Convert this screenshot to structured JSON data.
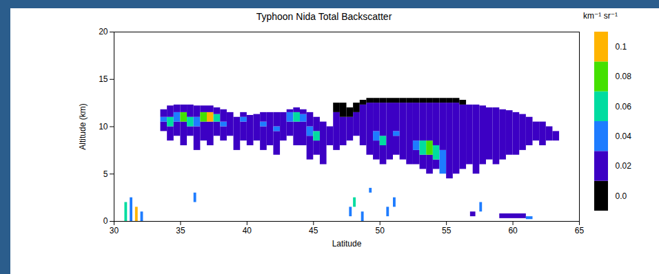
{
  "chart_data": {
    "type": "heatmap",
    "title": "Typhoon Nida Total Backscatter",
    "x_label": "Latitude",
    "y_label": "Altitude (km)",
    "xlim": [
      30,
      65
    ],
    "xticks": [
      30,
      35,
      40,
      45,
      50,
      55,
      60,
      65
    ],
    "ylim": [
      0,
      20
    ],
    "yticks": [
      0,
      5,
      10,
      15,
      20
    ],
    "cells": [
      [
        33.5,
        34,
        9.5,
        10.5,
        0.02
      ],
      [
        33.5,
        34,
        10.5,
        11,
        0.04
      ],
      [
        33.5,
        34,
        11,
        11.8,
        0.02
      ],
      [
        34,
        34.5,
        8.5,
        10,
        0.02
      ],
      [
        34,
        34.5,
        10,
        11,
        0.06
      ],
      [
        34,
        34.5,
        11,
        12.2,
        0.02
      ],
      [
        34.5,
        35,
        9,
        10.5,
        0.02
      ],
      [
        34.5,
        35,
        10.5,
        11.5,
        0.04
      ],
      [
        34.5,
        35,
        11.5,
        12.3,
        0.02
      ],
      [
        35,
        35.5,
        8,
        10.5,
        0.02
      ],
      [
        35,
        35.5,
        10.5,
        11.5,
        0.08
      ],
      [
        35,
        35.5,
        11.5,
        12.3,
        0.02
      ],
      [
        35.5,
        36,
        9,
        10,
        0.02
      ],
      [
        35.5,
        36,
        10,
        11,
        0.06
      ],
      [
        35.5,
        36,
        11,
        12.3,
        0.02
      ],
      [
        36,
        36.5,
        7.5,
        10,
        0.02
      ],
      [
        36,
        36.5,
        10,
        11,
        0.04
      ],
      [
        36,
        36.5,
        11,
        12.2,
        0.02
      ],
      [
        36.5,
        37,
        8.5,
        10.5,
        0.02
      ],
      [
        36.5,
        37,
        10.5,
        11.5,
        0.08
      ],
      [
        36.5,
        37,
        11.5,
        12.2,
        0.02
      ],
      [
        37,
        37.5,
        8,
        10.5,
        0.02
      ],
      [
        37,
        37.5,
        10.5,
        11.5,
        0.1
      ],
      [
        37,
        37.5,
        11.5,
        12.2,
        0.02
      ],
      [
        37.5,
        38,
        9,
        10.5,
        0.02
      ],
      [
        37.5,
        38,
        10.5,
        11.3,
        0.06
      ],
      [
        37.5,
        38,
        11.3,
        12,
        0.02
      ],
      [
        38,
        38.5,
        8.5,
        10,
        0.02
      ],
      [
        38,
        38.5,
        10,
        10.5,
        0.04
      ],
      [
        38,
        38.5,
        10.5,
        11.8,
        0.02
      ],
      [
        38.5,
        39,
        9,
        11.5,
        0.02
      ],
      [
        39,
        39.5,
        7.5,
        11,
        0.02
      ],
      [
        39.5,
        40,
        8.5,
        10.5,
        0.02
      ],
      [
        39.5,
        40,
        10.5,
        11,
        0.04
      ],
      [
        39.5,
        40,
        11,
        11.5,
        0.02
      ],
      [
        40,
        40.5,
        8,
        11.2,
        0.02
      ],
      [
        40.5,
        41,
        8.5,
        11.3,
        0.02
      ],
      [
        41,
        41.5,
        7.5,
        10,
        0.02
      ],
      [
        41,
        41.5,
        10,
        10.5,
        0.04
      ],
      [
        41,
        41.5,
        10.5,
        11.5,
        0.02
      ],
      [
        41.5,
        42,
        8,
        11.5,
        0.02
      ],
      [
        42,
        42.5,
        7,
        9.5,
        0.02
      ],
      [
        42,
        42.5,
        9.5,
        10,
        0.04
      ],
      [
        42,
        42.5,
        10,
        11.5,
        0.02
      ],
      [
        42.5,
        43,
        8.5,
        11.5,
        0.02
      ],
      [
        43,
        43.5,
        9,
        10.5,
        0.02
      ],
      [
        43,
        43.5,
        10.5,
        11.5,
        0.04
      ],
      [
        43,
        43.5,
        11.5,
        11.8,
        0.02
      ],
      [
        43.5,
        44,
        8,
        10.5,
        0.02
      ],
      [
        43.5,
        44,
        10.5,
        11.5,
        0.06
      ],
      [
        43.5,
        44,
        11.5,
        12,
        0.02
      ],
      [
        44,
        44.5,
        8,
        10.5,
        0.02
      ],
      [
        44,
        44.5,
        10.5,
        11.3,
        0.04
      ],
      [
        44,
        44.5,
        11.3,
        11.8,
        0.02
      ],
      [
        44.5,
        45,
        6.5,
        9,
        0.02
      ],
      [
        44.5,
        45,
        9,
        10,
        0.04
      ],
      [
        44.5,
        45,
        10,
        11.5,
        0.02
      ],
      [
        45,
        45.5,
        7,
        8.5,
        0.02
      ],
      [
        45,
        45.5,
        8.5,
        9.5,
        0.06
      ],
      [
        45,
        45.5,
        9.5,
        11,
        0.02
      ],
      [
        45.5,
        46,
        6,
        10.5,
        0.02
      ],
      [
        46,
        46.5,
        8,
        10,
        0.02
      ],
      [
        46.5,
        47,
        7.5,
        11.5,
        0.02
      ],
      [
        46.5,
        47,
        11.5,
        12.5,
        0
      ],
      [
        47,
        47.5,
        8,
        11,
        0.02
      ],
      [
        47,
        47.5,
        11,
        12.5,
        0
      ],
      [
        47.5,
        48,
        8.5,
        11,
        0.02
      ],
      [
        47.5,
        48,
        11,
        12,
        0
      ],
      [
        48,
        48.5,
        9,
        11.5,
        0.02
      ],
      [
        48,
        48.5,
        11.5,
        12.5,
        0
      ],
      [
        48.5,
        49,
        8,
        12.3,
        0.02
      ],
      [
        48.5,
        49,
        12.3,
        12.8,
        0
      ],
      [
        49,
        49.5,
        7,
        12.5,
        0.02
      ],
      [
        49,
        49.5,
        12.5,
        13,
        0
      ],
      [
        49.5,
        50,
        6.5,
        8.5,
        0.02
      ],
      [
        49.5,
        50,
        8.5,
        9.5,
        0.04
      ],
      [
        49.5,
        50,
        9.5,
        12.5,
        0.02
      ],
      [
        49.5,
        50,
        12.5,
        13,
        0
      ],
      [
        50,
        50.5,
        6,
        8,
        0.02
      ],
      [
        50,
        50.5,
        8,
        9,
        0.06
      ],
      [
        50,
        50.5,
        9,
        12.5,
        0.02
      ],
      [
        50,
        50.5,
        12.5,
        13,
        0
      ],
      [
        50.5,
        51,
        6.5,
        12.5,
        0.02
      ],
      [
        50.5,
        51,
        12.5,
        13,
        0
      ],
      [
        51,
        51.5,
        7,
        9,
        0.02
      ],
      [
        51,
        51.5,
        9,
        9.5,
        0.04
      ],
      [
        51,
        51.5,
        9.5,
        12.5,
        0.02
      ],
      [
        51,
        51.5,
        12.5,
        13,
        0
      ],
      [
        51.5,
        52,
        6.5,
        12.5,
        0.02
      ],
      [
        51.5,
        52,
        12.5,
        13,
        0
      ],
      [
        52,
        52.5,
        6,
        12.5,
        0.02
      ],
      [
        52,
        52.5,
        12.5,
        13,
        0
      ],
      [
        52.5,
        53,
        6,
        7.5,
        0.02
      ],
      [
        52.5,
        53,
        7.5,
        8.5,
        0.04
      ],
      [
        52.5,
        53,
        8.5,
        12.5,
        0.02
      ],
      [
        52.5,
        53,
        12.5,
        13,
        0
      ],
      [
        53,
        53.5,
        5.5,
        7,
        0.02
      ],
      [
        53,
        53.5,
        7,
        8.5,
        0.06
      ],
      [
        53,
        53.5,
        8.5,
        12.5,
        0.02
      ],
      [
        53,
        53.5,
        12.5,
        13,
        0
      ],
      [
        53.5,
        54,
        5,
        7,
        0.02
      ],
      [
        53.5,
        54,
        7,
        8.5,
        0.08
      ],
      [
        53.5,
        54,
        8.5,
        12.5,
        0.02
      ],
      [
        53.5,
        54,
        12.5,
        13,
        0
      ],
      [
        54,
        54.5,
        5.5,
        6.5,
        0.02
      ],
      [
        54,
        54.5,
        6.5,
        8,
        0.06
      ],
      [
        54,
        54.5,
        8,
        12.5,
        0.02
      ],
      [
        54,
        54.5,
        12.5,
        13,
        0
      ],
      [
        54.5,
        55,
        5,
        7.5,
        0.04
      ],
      [
        54.5,
        55,
        7.5,
        12.5,
        0.02
      ],
      [
        54.5,
        55,
        12.5,
        13,
        0
      ],
      [
        55,
        55.5,
        4.5,
        12.5,
        0.02
      ],
      [
        55,
        55.5,
        12.5,
        13,
        0
      ],
      [
        55.5,
        56,
        5,
        12.5,
        0.02
      ],
      [
        55.5,
        56,
        12.5,
        13,
        0
      ],
      [
        56,
        56.5,
        5.5,
        12.3,
        0.02
      ],
      [
        56,
        56.5,
        12.3,
        12.8,
        0
      ],
      [
        56.5,
        57,
        6,
        12.3,
        0.02
      ],
      [
        57,
        57.5,
        5,
        12.3,
        0.02
      ],
      [
        57.5,
        58,
        6,
        12.2,
        0.02
      ],
      [
        58,
        58.5,
        6.5,
        12,
        0.02
      ],
      [
        58.5,
        59,
        6,
        12,
        0.02
      ],
      [
        59,
        59.5,
        6.5,
        11.8,
        0.02
      ],
      [
        59.5,
        60,
        7,
        11.7,
        0.02
      ],
      [
        60,
        60.5,
        7,
        11.5,
        0.02
      ],
      [
        60.5,
        61,
        7.5,
        11.3,
        0.02
      ],
      [
        61,
        61.5,
        8,
        11,
        0.02
      ],
      [
        61.5,
        62,
        8.5,
        10.5,
        0.02
      ],
      [
        62,
        62.5,
        8,
        10.5,
        0.02
      ],
      [
        62.5,
        63,
        8.5,
        10,
        0.02
      ],
      [
        63,
        63.5,
        8.5,
        9.5,
        0.02
      ],
      [
        30.8,
        31,
        0,
        2,
        0.06
      ],
      [
        31.2,
        31.4,
        0,
        2.5,
        0.04
      ],
      [
        31.6,
        31.8,
        0,
        1.5,
        0.1
      ],
      [
        32,
        32.2,
        0,
        1,
        0.04
      ],
      [
        36,
        36.2,
        2,
        3,
        0.04
      ],
      [
        47.7,
        47.9,
        0.5,
        1.5,
        0.04
      ],
      [
        48,
        48.2,
        1.5,
        2.5,
        0.06
      ],
      [
        48.6,
        48.8,
        0,
        1,
        0.04
      ],
      [
        49.2,
        49.4,
        3,
        3.5,
        0.04
      ],
      [
        50.5,
        50.7,
        0.5,
        1.5,
        0.04
      ],
      [
        51,
        51.2,
        1.5,
        2.5,
        0.04
      ],
      [
        56.8,
        57.2,
        0.5,
        1,
        0.02
      ],
      [
        57.5,
        57.7,
        1,
        2,
        0.04
      ],
      [
        59,
        61,
        0.3,
        0.8,
        0.02
      ],
      [
        61,
        61.5,
        0.2,
        0.5,
        0.04
      ]
    ],
    "colorbar": {
      "title": "km⁻¹ sr⁻¹",
      "lim": [
        -0.01,
        0.11
      ],
      "ticks": [
        {
          "value": 0,
          "label": "0.0"
        },
        0.02,
        0.04,
        0.06,
        0.08,
        0.1
      ],
      "colors": [
        "#000000",
        "#3c00c4",
        "#1e7cff",
        "#00dca0",
        "#44e000",
        "#ffb400"
      ]
    }
  }
}
